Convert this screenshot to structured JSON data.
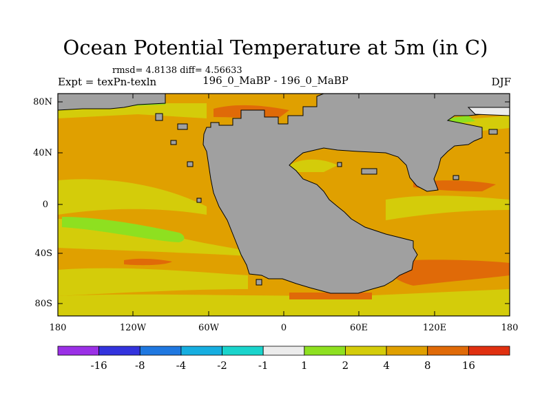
{
  "title": "Ocean Potential Temperature at 5m (in C)",
  "stats": "rmsd= 4.8138 diff= 4.56633",
  "left_label": "Expt = texPn-texln",
  "center_label": "196_0_MaBP - 196_0_MaBP",
  "right_label": "DJF",
  "map": {
    "lat_ticks": [
      "80N",
      "40N",
      "0",
      "40S",
      "80S"
    ],
    "lon_ticks": [
      "180",
      "120W",
      "60W",
      "0",
      "60E",
      "120E",
      "180"
    ],
    "land_color": "#a0a0a0"
  },
  "colorbar": {
    "colors": [
      "#9b30e6",
      "#3333dd",
      "#1f78e0",
      "#16aee0",
      "#1ad4cc",
      "#ececec",
      "#8ee020",
      "#d4cc0a",
      "#e0a000",
      "#e06a08",
      "#e03010"
    ],
    "labels": [
      "-16",
      "-8",
      "-4",
      "-2",
      "-1",
      "1",
      "2",
      "4",
      "8",
      "16"
    ]
  }
}
